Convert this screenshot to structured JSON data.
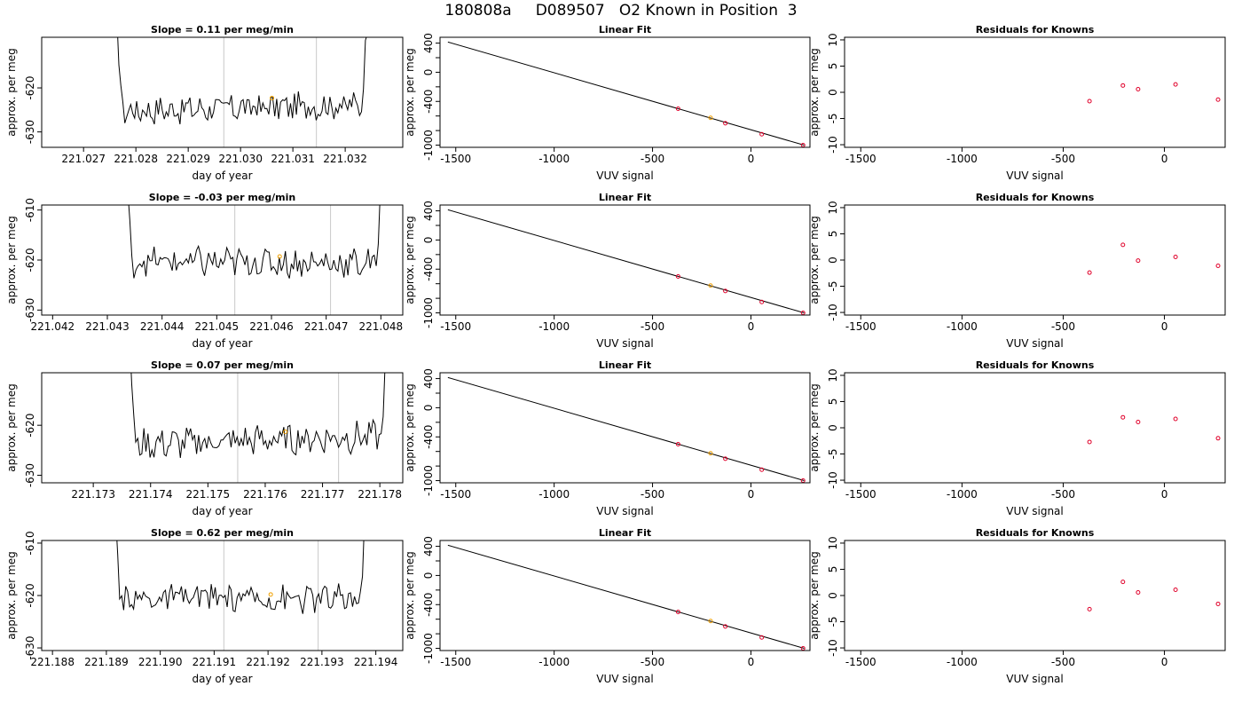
{
  "figure": {
    "title": "180808a     D089507   O2 Known in Position  3"
  },
  "colors": {
    "trace": "#000000",
    "vertical_lines": "#c8c8c8",
    "known_points": "#e0002a",
    "sample_point": "#f0a000"
  },
  "chart_data": [
    {
      "row": 0,
      "col": 0,
      "type": "line",
      "title": "Slope =  0.11  per meg/min",
      "xlabel": "day of year",
      "ylabel": "approx. per meg",
      "xlim": [
        221.0262,
        221.0331
      ],
      "ylim": [
        -633.5,
        -608.5
      ],
      "xticks": [
        221.027,
        221.028,
        221.029,
        221.03,
        221.031,
        221.032
      ],
      "yticks": [
        -620,
        -630
      ],
      "vlines": [
        221.02968,
        221.03145
      ],
      "point": [
        221.0306,
        -622.3
      ],
      "trace": {
        "start": 221.0276,
        "end": 221.0325,
        "center": -624.5,
        "slope": 0.35,
        "amp": 2.8
      }
    },
    {
      "row": 0,
      "col": 1,
      "type": "line",
      "title": "Linear Fit",
      "xlabel": "VUV signal",
      "ylabel": "approx. per meg",
      "xlim": [
        -1580,
        300
      ],
      "ylim": [
        -1030,
        480
      ],
      "xticks": [
        -1500,
        -1000,
        -500,
        0
      ],
      "yticks": [
        400,
        0,
        -400,
        -1000
      ],
      "yticks_minor": [
        200,
        -200,
        -600,
        -800
      ],
      "fit_line": [
        [
          -1540,
          415
        ],
        [
          270,
          -1000
        ]
      ],
      "knowns": [
        [
          -370,
          -500
        ],
        [
          -130,
          -700
        ],
        [
          55,
          -850
        ],
        [
          265,
          -1000
        ]
      ],
      "unknown": [
        -205,
        -625
      ]
    },
    {
      "row": 0,
      "col": 2,
      "type": "scatter",
      "title": "Residuals for Knowns",
      "xlabel": "VUV signal",
      "ylabel": "approx. per meg",
      "xlim": [
        -1580,
        300
      ],
      "ylim": [
        -10.5,
        10.5
      ],
      "xticks": [
        -1500,
        -1000,
        -500,
        0
      ],
      "yticks": [
        10,
        5,
        0,
        -5,
        -10
      ],
      "points": [
        [
          -370,
          -1.7
        ],
        [
          -205,
          1.3
        ],
        [
          -130,
          0.6
        ],
        [
          55,
          1.5
        ],
        [
          265,
          -1.4
        ]
      ]
    },
    {
      "row": 1,
      "col": 0,
      "type": "line",
      "title": "Slope =  -0.03  per meg/min",
      "xlabel": "day of year",
      "ylabel": "approx. per meg",
      "xlim": [
        221.0418,
        221.0484
      ],
      "ylim": [
        -631,
        -609
      ],
      "xticks": [
        221.042,
        221.043,
        221.044,
        221.045,
        221.046,
        221.047,
        221.048
      ],
      "yticks": [
        -610,
        -620,
        -630
      ],
      "vlines": [
        221.04533,
        221.04708
      ],
      "point": [
        221.04615,
        -619.3
      ],
      "trace": {
        "start": 221.0433,
        "end": 221.0481,
        "center": -620.5,
        "slope": -0.1,
        "amp": 2.6
      }
    },
    {
      "row": 1,
      "col": 1,
      "type": "line",
      "title": "Linear Fit",
      "xlabel": "VUV signal",
      "ylabel": "approx. per meg",
      "xlim": [
        -1580,
        300
      ],
      "ylim": [
        -1030,
        480
      ],
      "xticks": [
        -1500,
        -1000,
        -500,
        0
      ],
      "yticks": [
        400,
        0,
        -400,
        -1000
      ],
      "yticks_minor": [
        200,
        -200,
        -600,
        -800
      ],
      "fit_line": [
        [
          -1540,
          415
        ],
        [
          270,
          -1000
        ]
      ],
      "knowns": [
        [
          -370,
          -500
        ],
        [
          -130,
          -700
        ],
        [
          55,
          -850
        ],
        [
          265,
          -1000
        ]
      ],
      "unknown": [
        -205,
        -625
      ]
    },
    {
      "row": 1,
      "col": 2,
      "type": "scatter",
      "title": "Residuals for Knowns",
      "xlabel": "VUV signal",
      "ylabel": "approx. per meg",
      "xlim": [
        -1580,
        300
      ],
      "ylim": [
        -10.5,
        10.5
      ],
      "xticks": [
        -1500,
        -1000,
        -500,
        0
      ],
      "yticks": [
        10,
        5,
        0,
        -5,
        -10
      ],
      "points": [
        [
          -370,
          -2.4
        ],
        [
          -205,
          2.9
        ],
        [
          -130,
          -0.1
        ],
        [
          55,
          0.6
        ],
        [
          265,
          -1.1
        ]
      ]
    },
    {
      "row": 2,
      "col": 0,
      "type": "line",
      "title": "Slope =  0.07  per meg/min",
      "xlabel": "day of year",
      "ylabel": "approx. per meg",
      "xlim": [
        221.1721,
        221.1784
      ],
      "ylim": [
        -631.5,
        -609.5
      ],
      "xticks": [
        221.173,
        221.174,
        221.175,
        221.176,
        221.177,
        221.178
      ],
      "yticks": [
        -620,
        -630
      ],
      "vlines": [
        221.17552,
        221.17728
      ],
      "point": [
        221.17635,
        -621.3
      ],
      "trace": {
        "start": 221.1736,
        "end": 221.1782,
        "center": -623.0,
        "slope": 0.45,
        "amp": 2.7
      }
    },
    {
      "row": 2,
      "col": 1,
      "type": "line",
      "title": "Linear Fit",
      "xlabel": "VUV signal",
      "ylabel": "approx. per meg",
      "xlim": [
        -1580,
        300
      ],
      "ylim": [
        -1030,
        480
      ],
      "xticks": [
        -1500,
        -1000,
        -500,
        0
      ],
      "yticks": [
        400,
        0,
        -400,
        -1000
      ],
      "yticks_minor": [
        200,
        -200,
        -600,
        -800
      ],
      "fit_line": [
        [
          -1540,
          415
        ],
        [
          270,
          -1000
        ]
      ],
      "knowns": [
        [
          -370,
          -500
        ],
        [
          -130,
          -700
        ],
        [
          55,
          -850
        ],
        [
          265,
          -1000
        ]
      ],
      "unknown": [
        -205,
        -625
      ]
    },
    {
      "row": 2,
      "col": 2,
      "type": "scatter",
      "title": "Residuals for Knowns",
      "xlabel": "VUV signal",
      "ylabel": "approx. per meg",
      "xlim": [
        -1580,
        300
      ],
      "ylim": [
        -10.5,
        10.5
      ],
      "xticks": [
        -1500,
        -1000,
        -500,
        0
      ],
      "yticks": [
        10,
        5,
        0,
        -5,
        -10
      ],
      "points": [
        [
          -370,
          -2.7
        ],
        [
          -205,
          2.0
        ],
        [
          -130,
          1.1
        ],
        [
          55,
          1.7
        ],
        [
          265,
          -2.0
        ]
      ]
    },
    {
      "row": 3,
      "col": 0,
      "type": "line",
      "title": "Slope =  0.62  per meg/min",
      "xlabel": "day of year",
      "ylabel": "approx. per meg",
      "xlim": [
        221.1878,
        221.1945
      ],
      "ylim": [
        -630.5,
        -609.5
      ],
      "xticks": [
        221.188,
        221.189,
        221.19,
        221.191,
        221.192,
        221.193,
        221.194
      ],
      "yticks": [
        -610,
        -620,
        -630
      ],
      "vlines": [
        221.19118,
        221.19293
      ],
      "point": [
        221.19205,
        -619.8
      ],
      "trace": {
        "start": 221.1891,
        "end": 221.1939,
        "center": -620.5,
        "slope": 0.0,
        "amp": 2.4
      }
    },
    {
      "row": 3,
      "col": 1,
      "type": "line",
      "title": "Linear Fit",
      "xlabel": "VUV signal",
      "ylabel": "approx. per meg",
      "xlim": [
        -1580,
        300
      ],
      "ylim": [
        -1030,
        480
      ],
      "xticks": [
        -1500,
        -1000,
        -500,
        0
      ],
      "yticks": [
        400,
        0,
        -400,
        -1000
      ],
      "yticks_minor": [
        200,
        -200,
        -600,
        -800
      ],
      "fit_line": [
        [
          -1540,
          415
        ],
        [
          270,
          -1000
        ]
      ],
      "knowns": [
        [
          -370,
          -500
        ],
        [
          -130,
          -700
        ],
        [
          55,
          -850
        ],
        [
          265,
          -1000
        ]
      ],
      "unknown": [
        -205,
        -625
      ]
    },
    {
      "row": 3,
      "col": 2,
      "type": "scatter",
      "title": "Residuals for Knowns",
      "xlabel": "VUV signal",
      "ylabel": "approx. per meg",
      "xlim": [
        -1580,
        300
      ],
      "ylim": [
        -10.5,
        10.5
      ],
      "xticks": [
        -1500,
        -1000,
        -500,
        0
      ],
      "yticks": [
        10,
        5,
        0,
        -5,
        -10
      ],
      "points": [
        [
          -370,
          -2.6
        ],
        [
          -205,
          2.6
        ],
        [
          -130,
          0.6
        ],
        [
          55,
          1.1
        ],
        [
          265,
          -1.6
        ]
      ]
    }
  ]
}
